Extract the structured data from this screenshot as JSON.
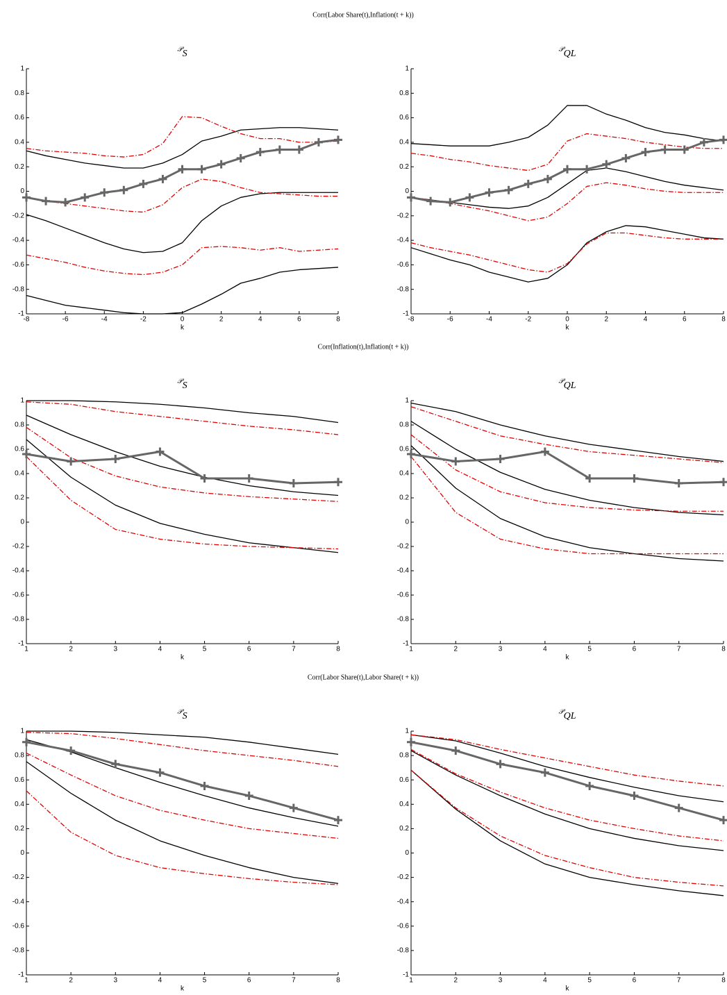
{
  "chart_data": [
    {
      "type": "line",
      "title": "Corr(Labor Share(t),Inflation(t + k))",
      "subtitle": "𝒫",
      "subtitle_subscript": "S",
      "xlabel": "k",
      "x": [
        -8,
        -7,
        -6,
        -5,
        -4,
        -3,
        -2,
        -1,
        0,
        1,
        2,
        3,
        4,
        5,
        6,
        7,
        8
      ],
      "xlim": [
        -8,
        8
      ],
      "xticks": [
        -8,
        -6,
        -4,
        -2,
        0,
        2,
        4,
        6,
        8
      ],
      "ylim": [
        -1,
        1
      ],
      "yticks": [
        -1,
        -0.8,
        -0.6,
        -0.4,
        -0.2,
        0,
        0.2,
        0.4,
        0.6,
        0.8,
        1
      ],
      "series": [
        {
          "color": "#000000",
          "values": [
            0.33,
            0.29,
            0.26,
            0.23,
            0.21,
            0.19,
            0.19,
            0.23,
            0.3,
            0.41,
            0.45,
            0.5,
            0.51,
            0.52,
            0.52,
            0.51,
            0.5
          ]
        },
        {
          "color": "#000000",
          "values": [
            -0.19,
            -0.24,
            -0.3,
            -0.36,
            -0.42,
            -0.47,
            -0.5,
            -0.49,
            -0.42,
            -0.24,
            -0.12,
            -0.05,
            -0.02,
            -0.01,
            -0.01,
            -0.01,
            -0.01
          ]
        },
        {
          "color": "#000000",
          "values": [
            -0.85,
            -0.89,
            -0.93,
            -0.95,
            -0.97,
            -0.99,
            -1.0,
            -1.0,
            -0.99,
            -0.92,
            -0.84,
            -0.75,
            -0.71,
            -0.66,
            -0.64,
            -0.63,
            -0.62
          ]
        },
        {
          "color": "#e00000",
          "dash": true,
          "values": [
            0.35,
            0.33,
            0.32,
            0.31,
            0.29,
            0.28,
            0.3,
            0.39,
            0.61,
            0.6,
            0.53,
            0.47,
            0.43,
            0.43,
            0.4,
            0.4,
            0.41
          ]
        },
        {
          "color": "#e00000",
          "dash": true,
          "values": [
            -0.05,
            -0.08,
            -0.1,
            -0.12,
            -0.14,
            -0.16,
            -0.17,
            -0.11,
            0.03,
            0.1,
            0.08,
            0.03,
            -0.01,
            -0.02,
            -0.03,
            -0.04,
            -0.04
          ]
        },
        {
          "color": "#e00000",
          "dash": true,
          "values": [
            -0.52,
            -0.55,
            -0.58,
            -0.62,
            -0.65,
            -0.67,
            -0.68,
            -0.66,
            -0.6,
            -0.46,
            -0.45,
            -0.46,
            -0.48,
            -0.46,
            -0.49,
            -0.48,
            -0.47
          ]
        },
        {
          "color": "#666666",
          "marker": "+",
          "width": 3,
          "values": [
            -0.05,
            -0.08,
            -0.09,
            -0.05,
            -0.01,
            0.01,
            0.06,
            0.1,
            0.18,
            0.18,
            0.22,
            0.27,
            0.32,
            0.34,
            0.34,
            0.4,
            0.42
          ]
        }
      ]
    },
    {
      "type": "line",
      "subtitle": "𝒫",
      "subtitle_subscript": "QL",
      "xlabel": "k",
      "x": [
        -8,
        -7,
        -6,
        -5,
        -4,
        -3,
        -2,
        -1,
        0,
        1,
        2,
        3,
        4,
        5,
        6,
        7,
        8
      ],
      "xlim": [
        -8,
        8
      ],
      "xticks": [
        -8,
        -6,
        -4,
        -2,
        0,
        2,
        4,
        6,
        8
      ],
      "ylim": [
        -1,
        1
      ],
      "yticks": [
        -1,
        -0.8,
        -0.6,
        -0.4,
        -0.2,
        0,
        0.2,
        0.4,
        0.6,
        0.8,
        1
      ],
      "series": [
        {
          "color": "#000000",
          "values": [
            0.39,
            0.38,
            0.37,
            0.37,
            0.37,
            0.4,
            0.44,
            0.54,
            0.7,
            0.7,
            0.63,
            0.58,
            0.52,
            0.48,
            0.46,
            0.43,
            0.41
          ]
        },
        {
          "color": "#000000",
          "values": [
            -0.05,
            -0.07,
            -0.09,
            -0.11,
            -0.13,
            -0.14,
            -0.12,
            -0.05,
            0.06,
            0.17,
            0.19,
            0.16,
            0.12,
            0.08,
            0.05,
            0.03,
            0.01
          ]
        },
        {
          "color": "#000000",
          "values": [
            -0.46,
            -0.51,
            -0.56,
            -0.6,
            -0.66,
            -0.7,
            -0.74,
            -0.71,
            -0.6,
            -0.42,
            -0.33,
            -0.28,
            -0.29,
            -0.32,
            -0.35,
            -0.38,
            -0.39
          ]
        },
        {
          "color": "#e00000",
          "dash": true,
          "values": [
            0.31,
            0.29,
            0.26,
            0.24,
            0.21,
            0.19,
            0.17,
            0.22,
            0.41,
            0.47,
            0.45,
            0.43,
            0.4,
            0.38,
            0.36,
            0.35,
            0.35
          ]
        },
        {
          "color": "#e00000",
          "dash": true,
          "values": [
            -0.05,
            -0.07,
            -0.1,
            -0.13,
            -0.16,
            -0.2,
            -0.24,
            -0.21,
            -0.1,
            0.04,
            0.07,
            0.05,
            0.02,
            0.0,
            -0.01,
            -0.01,
            -0.01
          ]
        },
        {
          "color": "#e00000",
          "dash": true,
          "values": [
            -0.42,
            -0.46,
            -0.49,
            -0.52,
            -0.56,
            -0.6,
            -0.64,
            -0.66,
            -0.59,
            -0.43,
            -0.34,
            -0.34,
            -0.36,
            -0.38,
            -0.39,
            -0.39,
            -0.39
          ]
        },
        {
          "color": "#666666",
          "marker": "+",
          "width": 3,
          "values": [
            -0.05,
            -0.08,
            -0.09,
            -0.05,
            -0.01,
            0.01,
            0.06,
            0.1,
            0.18,
            0.18,
            0.22,
            0.27,
            0.32,
            0.34,
            0.34,
            0.4,
            0.42
          ]
        }
      ]
    },
    {
      "type": "line",
      "title": "Corr(Inflation(t),Inflation(t + k))",
      "subtitle": "𝒫",
      "subtitle_subscript": "S",
      "xlabel": "k",
      "x": [
        1,
        2,
        3,
        4,
        5,
        6,
        7,
        8
      ],
      "xlim": [
        1,
        8
      ],
      "xticks": [
        1,
        2,
        3,
        4,
        5,
        6,
        7,
        8
      ],
      "ylim": [
        -1,
        1
      ],
      "yticks": [
        -1,
        -0.8,
        -0.6,
        -0.4,
        -0.2,
        0,
        0.2,
        0.4,
        0.6,
        0.8,
        1
      ],
      "series": [
        {
          "color": "#000000",
          "values": [
            1.0,
            1.0,
            0.99,
            0.97,
            0.94,
            0.9,
            0.87,
            0.82
          ]
        },
        {
          "color": "#000000",
          "values": [
            0.88,
            0.72,
            0.58,
            0.46,
            0.37,
            0.3,
            0.25,
            0.22
          ]
        },
        {
          "color": "#000000",
          "values": [
            0.68,
            0.37,
            0.14,
            -0.01,
            -0.1,
            -0.17,
            -0.21,
            -0.25
          ]
        },
        {
          "color": "#e00000",
          "dash": true,
          "values": [
            0.99,
            0.97,
            0.91,
            0.87,
            0.83,
            0.79,
            0.76,
            0.72
          ]
        },
        {
          "color": "#e00000",
          "dash": true,
          "values": [
            0.78,
            0.53,
            0.38,
            0.29,
            0.24,
            0.21,
            0.19,
            0.17
          ]
        },
        {
          "color": "#e00000",
          "dash": true,
          "values": [
            0.54,
            0.18,
            -0.06,
            -0.14,
            -0.18,
            -0.2,
            -0.21,
            -0.22
          ]
        },
        {
          "color": "#666666",
          "marker": "+",
          "width": 3,
          "values": [
            0.56,
            0.5,
            0.52,
            0.58,
            0.36,
            0.36,
            0.32,
            0.33
          ]
        }
      ]
    },
    {
      "type": "line",
      "subtitle": "𝒫",
      "subtitle_subscript": "QL",
      "xlabel": "k",
      "x": [
        1,
        2,
        3,
        4,
        5,
        6,
        7,
        8
      ],
      "xlim": [
        1,
        8
      ],
      "xticks": [
        1,
        2,
        3,
        4,
        5,
        6,
        7,
        8
      ],
      "ylim": [
        -1,
        1
      ],
      "yticks": [
        -1,
        -0.8,
        -0.6,
        -0.4,
        -0.2,
        0,
        0.2,
        0.4,
        0.6,
        0.8,
        1
      ],
      "series": [
        {
          "color": "#000000",
          "values": [
            0.98,
            0.91,
            0.8,
            0.71,
            0.64,
            0.59,
            0.54,
            0.5
          ]
        },
        {
          "color": "#000000",
          "values": [
            0.83,
            0.6,
            0.41,
            0.27,
            0.18,
            0.12,
            0.08,
            0.06
          ]
        },
        {
          "color": "#000000",
          "values": [
            0.63,
            0.28,
            0.03,
            -0.12,
            -0.21,
            -0.26,
            -0.3,
            -0.32
          ]
        },
        {
          "color": "#e00000",
          "dash": true,
          "values": [
            0.95,
            0.83,
            0.71,
            0.64,
            0.58,
            0.55,
            0.52,
            0.49
          ]
        },
        {
          "color": "#e00000",
          "dash": true,
          "values": [
            0.72,
            0.43,
            0.25,
            0.16,
            0.12,
            0.1,
            0.09,
            0.09
          ]
        },
        {
          "color": "#e00000",
          "dash": true,
          "values": [
            0.54,
            0.08,
            -0.14,
            -0.22,
            -0.26,
            -0.26,
            -0.26,
            -0.26
          ]
        },
        {
          "color": "#666666",
          "marker": "+",
          "width": 3,
          "values": [
            0.56,
            0.5,
            0.52,
            0.58,
            0.36,
            0.36,
            0.32,
            0.33
          ]
        }
      ]
    },
    {
      "type": "line",
      "title": "Corr(Labor Share(t),Labor Share(t + k))",
      "subtitle": "𝒫",
      "subtitle_subscript": "S",
      "xlabel": "k",
      "x": [
        1,
        2,
        3,
        4,
        5,
        6,
        7,
        8
      ],
      "xlim": [
        1,
        8
      ],
      "xticks": [
        1,
        2,
        3,
        4,
        5,
        6,
        7,
        8
      ],
      "ylim": [
        -1,
        1
      ],
      "yticks": [
        -1,
        -0.8,
        -0.6,
        -0.4,
        -0.2,
        0,
        0.2,
        0.4,
        0.6,
        0.8,
        1
      ],
      "series": [
        {
          "color": "#000000",
          "values": [
            1.0,
            1.0,
            0.99,
            0.97,
            0.95,
            0.91,
            0.86,
            0.81
          ]
        },
        {
          "color": "#000000",
          "values": [
            0.93,
            0.83,
            0.7,
            0.58,
            0.47,
            0.37,
            0.29,
            0.22
          ]
        },
        {
          "color": "#000000",
          "values": [
            0.75,
            0.49,
            0.27,
            0.1,
            -0.02,
            -0.12,
            -0.2,
            -0.25
          ]
        },
        {
          "color": "#e00000",
          "dash": true,
          "values": [
            0.99,
            0.98,
            0.94,
            0.89,
            0.84,
            0.8,
            0.76,
            0.71
          ]
        },
        {
          "color": "#e00000",
          "dash": true,
          "values": [
            0.82,
            0.64,
            0.47,
            0.35,
            0.27,
            0.2,
            0.16,
            0.12
          ]
        },
        {
          "color": "#e00000",
          "dash": true,
          "values": [
            0.51,
            0.17,
            -0.02,
            -0.12,
            -0.17,
            -0.21,
            -0.24,
            -0.26
          ]
        },
        {
          "color": "#666666",
          "marker": "+",
          "width": 3,
          "values": [
            0.91,
            0.84,
            0.73,
            0.66,
            0.55,
            0.47,
            0.37,
            0.27
          ]
        }
      ]
    },
    {
      "type": "line",
      "subtitle": "𝒫",
      "subtitle_subscript": "QL",
      "xlabel": "k",
      "x": [
        1,
        2,
        3,
        4,
        5,
        6,
        7,
        8
      ],
      "xlim": [
        1,
        8
      ],
      "xticks": [
        1,
        2,
        3,
        4,
        5,
        6,
        7,
        8
      ],
      "ylim": [
        -1,
        1
      ],
      "yticks": [
        -1,
        -0.8,
        -0.6,
        -0.4,
        -0.2,
        0,
        0.2,
        0.4,
        0.6,
        0.8,
        1
      ],
      "series": [
        {
          "color": "#000000",
          "values": [
            0.97,
            0.92,
            0.82,
            0.71,
            0.62,
            0.54,
            0.47,
            0.42
          ]
        },
        {
          "color": "#000000",
          "values": [
            0.84,
            0.64,
            0.47,
            0.32,
            0.2,
            0.12,
            0.06,
            0.02
          ]
        },
        {
          "color": "#000000",
          "values": [
            0.68,
            0.36,
            0.1,
            -0.09,
            -0.2,
            -0.26,
            -0.31,
            -0.35
          ]
        },
        {
          "color": "#e00000",
          "dash": true,
          "values": [
            0.97,
            0.93,
            0.85,
            0.78,
            0.71,
            0.64,
            0.59,
            0.55
          ]
        },
        {
          "color": "#e00000",
          "dash": true,
          "values": [
            0.85,
            0.65,
            0.5,
            0.37,
            0.27,
            0.2,
            0.14,
            0.1
          ]
        },
        {
          "color": "#e00000",
          "dash": true,
          "values": [
            0.68,
            0.37,
            0.14,
            -0.02,
            -0.12,
            -0.2,
            -0.24,
            -0.27
          ]
        },
        {
          "color": "#666666",
          "marker": "+",
          "width": 3,
          "values": [
            0.91,
            0.84,
            0.73,
            0.66,
            0.55,
            0.47,
            0.37,
            0.27
          ]
        }
      ]
    }
  ]
}
